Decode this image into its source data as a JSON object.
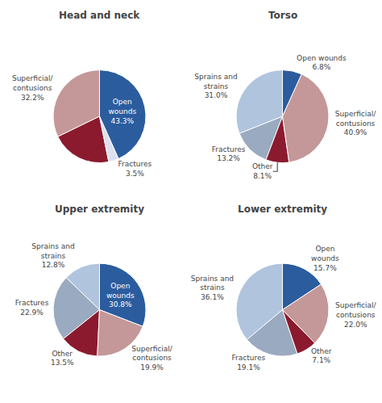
{
  "chart_data": [
    {
      "type": "pie",
      "title": "Head and neck",
      "values": [
        43.3,
        32.2,
        21.0,
        3.5
      ],
      "colors": [
        "#2b5c9e",
        "#c49898",
        "#8b1a2e",
        "#dde0f0"
      ],
      "value_labels": [
        "Open\nwounds\n43.3%",
        "Superficial/\ncontusions\n32.2%",
        null,
        "Fractures\n3.5%"
      ]
    },
    {
      "type": "pie",
      "title": "Torso",
      "values": [
        6.8,
        31.0,
        13.2,
        8.1,
        40.9
      ],
      "colors": [
        "#2b5c9e",
        "#b0c4de",
        "#9aaac0",
        "#8b1a2e",
        "#c49898"
      ],
      "value_labels": [
        "Open wounds\n6.8%",
        "Sprains and\nstrains\n31.0%",
        "Fractures\n13.2%",
        "Other\n8.1%",
        "Superficial/\ncontusions\n40.9%"
      ]
    },
    {
      "type": "pie",
      "title": "Upper extremity",
      "values": [
        30.8,
        12.8,
        22.9,
        13.5,
        19.9
      ],
      "colors": [
        "#2b5c9e",
        "#b0c4de",
        "#9aaac0",
        "#8b1a2e",
        "#c49898"
      ],
      "value_labels": [
        "Open\nwounds\n30.8%",
        "Sprains and\nstrains\n12.8%",
        "Fractures\n22.9%",
        "Other\n13.5%",
        "Superficial/\ncontusions\n19.9%"
      ]
    },
    {
      "type": "pie",
      "title": "Lower extremity",
      "values": [
        15.7,
        36.1,
        19.1,
        7.1,
        22.0
      ],
      "colors": [
        "#2b5c9e",
        "#b0c4de",
        "#9aaac0",
        "#8b1a2e",
        "#c49898"
      ],
      "value_labels": [
        "Open\nwounds\n15.7%",
        "Sprains and\nstrains\n36.1%",
        "Fractures\n19.1%",
        "Other\n7.1%",
        "Superficial/\ncontusions\n22.0%"
      ]
    }
  ]
}
